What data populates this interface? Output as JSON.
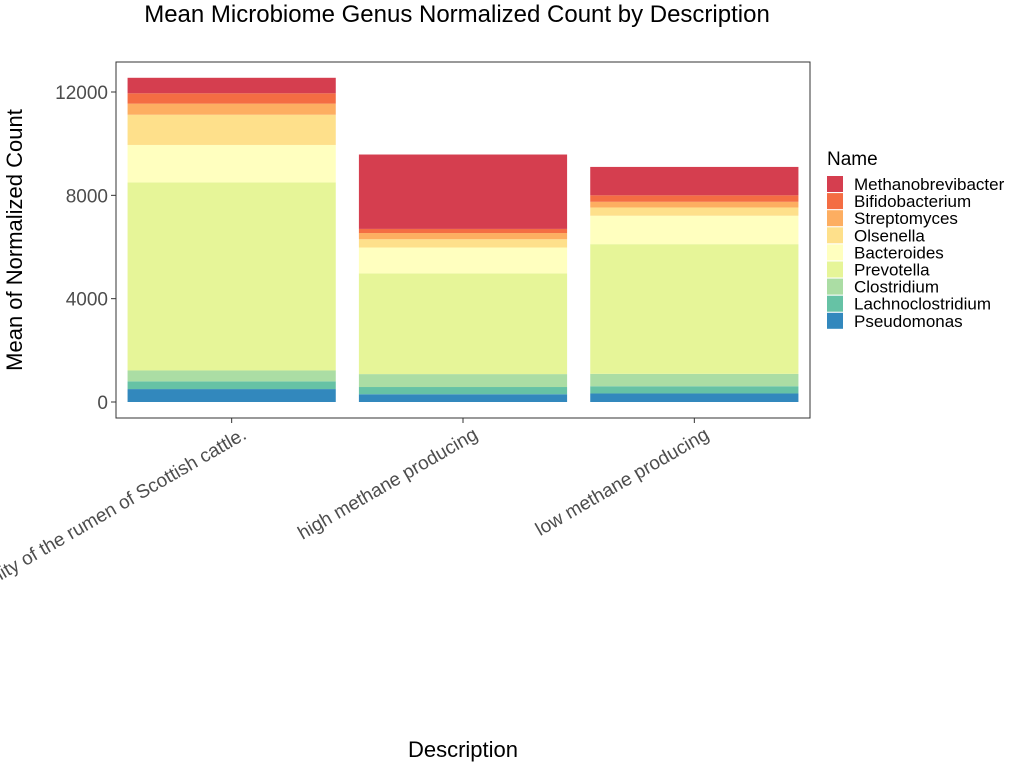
{
  "chart_data": {
    "type": "bar",
    "stacked": true,
    "title": "Mean Microbiome Genus Normalized Count by Description",
    "xlabel": "Description",
    "ylabel": "Mean of Normalized Count",
    "ylim": [
      0,
      13000
    ],
    "yticks": [
      0,
      4000,
      8000,
      12000
    ],
    "yticks_labels": [
      "0",
      "4000",
      "8000",
      "12000"
    ],
    "grid": false,
    "categories": [
      "Community of the rumen of Scottish cattle.",
      "high methane producing",
      "low methane producing"
    ],
    "legend": {
      "title": "Name",
      "placement": "right"
    },
    "series": [
      {
        "name": "Pseudomonas",
        "color": "#3288bd",
        "values": [
          500,
          300,
          330
        ]
      },
      {
        "name": "Lachnoclostridium",
        "color": "#66c2a5",
        "values": [
          300,
          280,
          280
        ]
      },
      {
        "name": "Clostridium",
        "color": "#abdda4",
        "values": [
          420,
          500,
          480
        ]
      },
      {
        "name": "Prevotella",
        "color": "#e6f598",
        "values": [
          7280,
          3900,
          5020
        ]
      },
      {
        "name": "Bacteroides",
        "color": "#ffffbf",
        "values": [
          1450,
          1000,
          1100
        ]
      },
      {
        "name": "Olsenella",
        "color": "#fee08b",
        "values": [
          1170,
          320,
          320
        ]
      },
      {
        "name": "Streptomyces",
        "color": "#fdae61",
        "values": [
          430,
          240,
          220
        ]
      },
      {
        "name": "Bifidobacterium",
        "color": "#f46d43",
        "values": [
          400,
          160,
          250
        ]
      },
      {
        "name": "Methanobrevibacter",
        "color": "#d53e4f",
        "values": [
          600,
          2880,
          1100
        ]
      }
    ]
  }
}
